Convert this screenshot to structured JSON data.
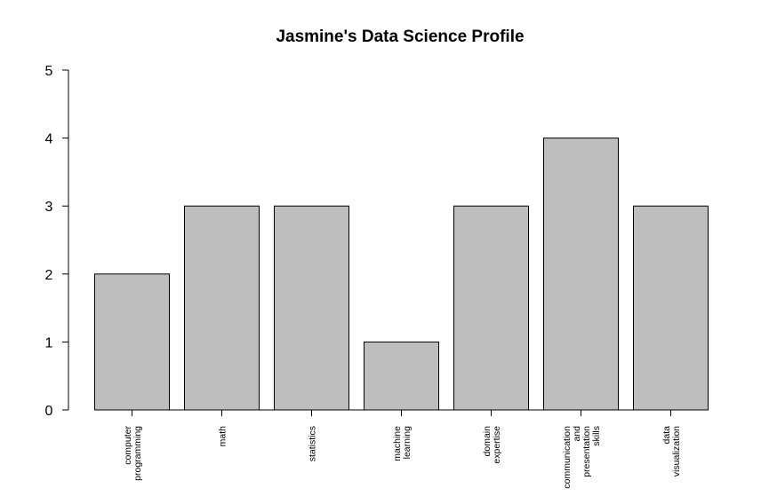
{
  "chart_data": {
    "type": "bar",
    "title": "Jasmine's Data Science Profile",
    "xlabel": "",
    "ylabel": "",
    "ylim": [
      0,
      5
    ],
    "yticks": [
      "0",
      "1",
      "2",
      "3",
      "4",
      "5"
    ],
    "grid": false,
    "legend": "none",
    "bar_color": "#bebebe",
    "categories": [
      [
        "computer",
        "programming"
      ],
      [
        "math"
      ],
      [
        "statistics"
      ],
      [
        "machine",
        "learning"
      ],
      [
        "domain",
        "expertise"
      ],
      [
        "communication",
        "and",
        "presentation",
        "skills"
      ],
      [
        "data",
        "visualization"
      ]
    ],
    "values": [
      2,
      3,
      3,
      1,
      3,
      4,
      3
    ]
  }
}
